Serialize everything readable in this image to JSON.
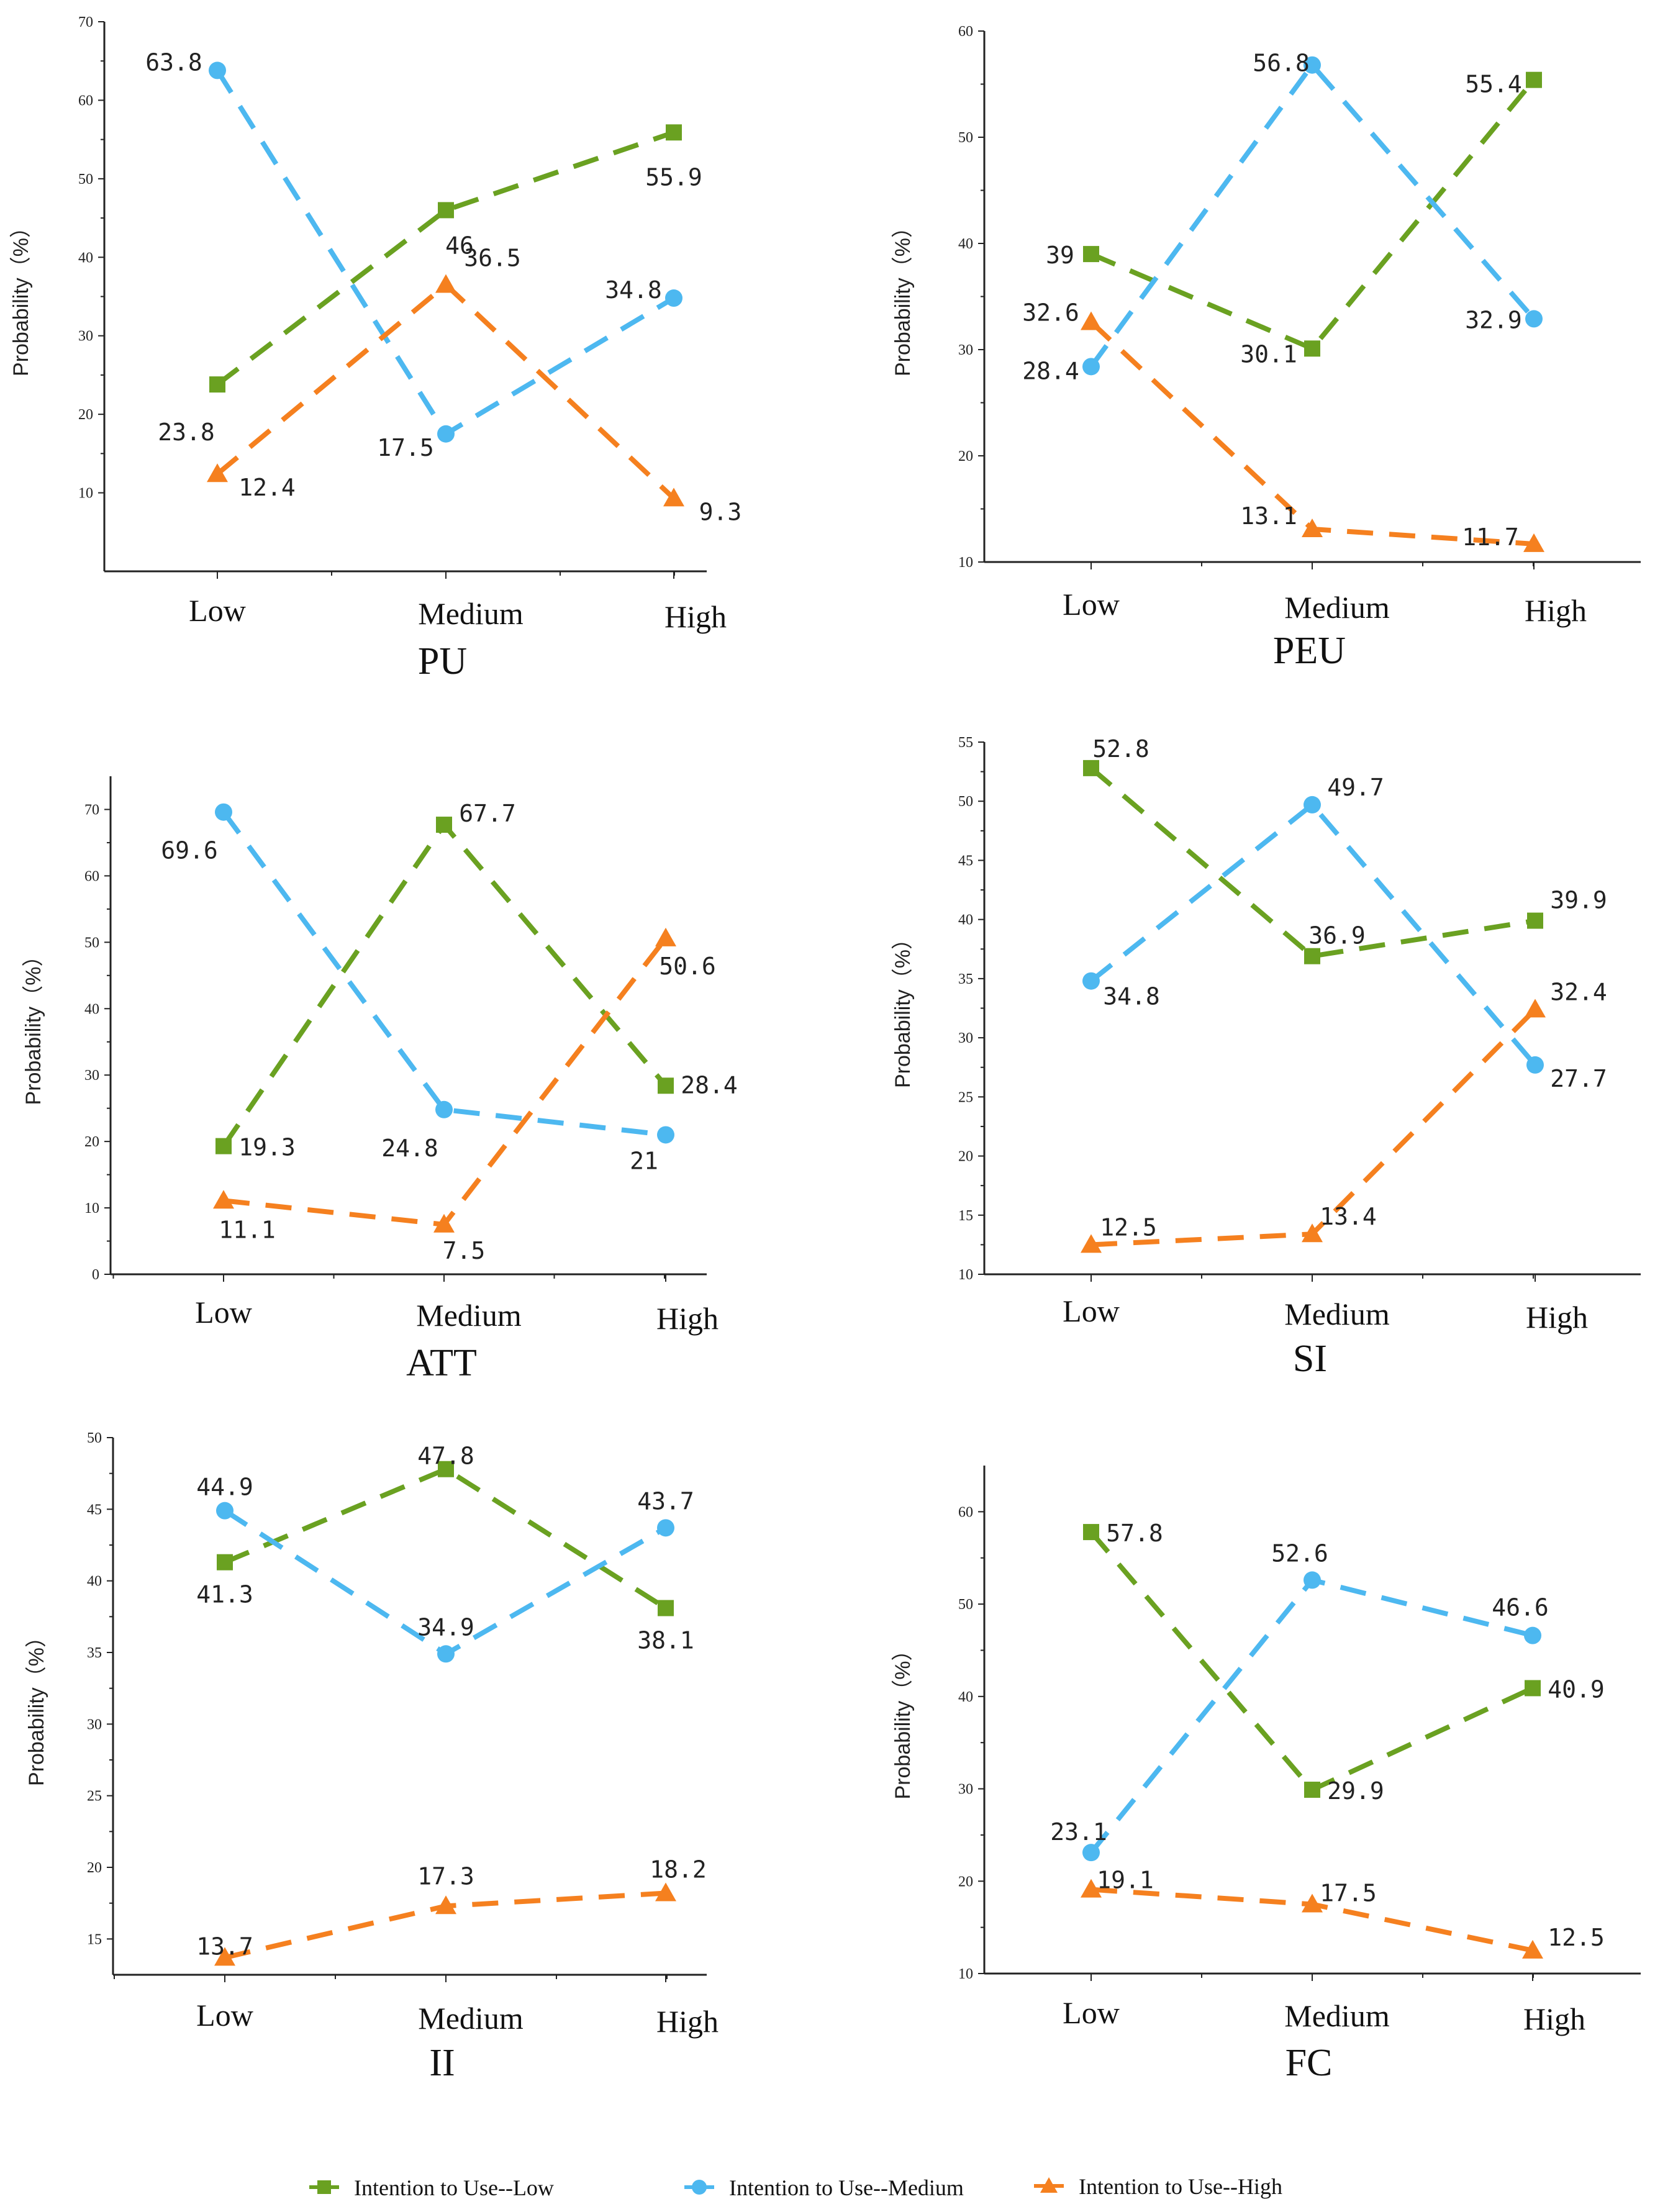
{
  "legend": {
    "entries": [
      {
        "series": "low",
        "label": "Intention to Use--Low"
      },
      {
        "series": "medium",
        "label": "Intention to Use--Medium"
      },
      {
        "series": "high",
        "label": "Intention to Use--High"
      }
    ]
  },
  "colors": {
    "low": "#6aa121",
    "medium": "#4db8f0",
    "high": "#f5801f"
  },
  "chart_data": [
    {
      "type": "line",
      "title": "PU",
      "ylabel": "Probability（%）",
      "categories": [
        "Low",
        "Medium",
        "High"
      ],
      "ylim": [
        0,
        70
      ],
      "yticks": [
        10,
        20,
        30,
        40,
        50,
        60,
        70
      ],
      "series": [
        {
          "name": "Intention to Use--Low",
          "key": "low",
          "values": [
            23.8,
            46,
            55.9
          ],
          "labels": [
            "23.8",
            "46",
            "55.9"
          ]
        },
        {
          "name": "Intention to Use--Medium",
          "key": "medium",
          "values": [
            63.8,
            17.5,
            34.8
          ],
          "labels": [
            "63.8",
            "17.5",
            "34.8"
          ]
        },
        {
          "name": "Intention to Use--High",
          "key": "high",
          "values": [
            12.4,
            36.5,
            9.3
          ],
          "labels": [
            "12.4",
            "36.5",
            "9.3"
          ]
        }
      ]
    },
    {
      "type": "line",
      "title": "PEU",
      "ylabel": "Probability（%）",
      "categories": [
        "Low",
        "Medium",
        "High"
      ],
      "ylim": [
        10,
        60
      ],
      "yticks": [
        10,
        20,
        30,
        40,
        50,
        60
      ],
      "series": [
        {
          "name": "Intention to Use--Low",
          "key": "low",
          "values": [
            39,
            30.1,
            55.4
          ],
          "labels": [
            "39",
            "30.1",
            "55.4"
          ]
        },
        {
          "name": "Intention to Use--Medium",
          "key": "medium",
          "values": [
            28.4,
            56.8,
            32.9
          ],
          "labels": [
            "28.4",
            "56.8",
            "32.9"
          ]
        },
        {
          "name": "Intention to Use--High",
          "key": "high",
          "values": [
            32.6,
            13.1,
            11.7
          ],
          "labels": [
            "32.6",
            "13.1",
            "11.7"
          ]
        }
      ]
    },
    {
      "type": "line",
      "title": "ATT",
      "ylabel": "Probability（%）",
      "categories": [
        "Low",
        "Medium",
        "High"
      ],
      "ylim": [
        0,
        75
      ],
      "yticks": [
        0,
        10,
        20,
        30,
        40,
        50,
        60,
        70
      ],
      "series": [
        {
          "name": "Intention to Use--Low",
          "key": "low",
          "values": [
            19.3,
            67.7,
            28.4
          ],
          "labels": [
            "19.3",
            "67.7",
            "28.4"
          ]
        },
        {
          "name": "Intention to Use--Medium",
          "key": "medium",
          "values": [
            69.6,
            24.8,
            21
          ],
          "labels": [
            "69.6",
            "24.8",
            "21"
          ]
        },
        {
          "name": "Intention to Use--High",
          "key": "high",
          "values": [
            11.1,
            7.5,
            50.6
          ],
          "labels": [
            "11.1",
            "7.5",
            "50.6"
          ]
        }
      ]
    },
    {
      "type": "line",
      "title": "SI",
      "ylabel": "Probability（%）",
      "categories": [
        "Low",
        "Medium",
        "High"
      ],
      "ylim": [
        10,
        55
      ],
      "yticks": [
        10,
        15,
        20,
        25,
        30,
        35,
        40,
        45,
        50,
        55
      ],
      "series": [
        {
          "name": "Intention to Use--Low",
          "key": "low",
          "values": [
            52.8,
            36.9,
            39.9
          ],
          "labels": [
            "52.8",
            "36.9",
            "39.9"
          ]
        },
        {
          "name": "Intention to Use--Medium",
          "key": "medium",
          "values": [
            34.8,
            49.7,
            27.7
          ],
          "labels": [
            "34.8",
            "49.7",
            "27.7"
          ]
        },
        {
          "name": "Intention to Use--High",
          "key": "high",
          "values": [
            12.5,
            13.4,
            32.4
          ],
          "labels": [
            "12.5",
            "13.4",
            "32.4"
          ]
        }
      ]
    },
    {
      "type": "line",
      "title": "II",
      "ylabel": "Probability（%）",
      "categories": [
        "Low",
        "Medium",
        "High"
      ],
      "ylim": [
        12.5,
        50
      ],
      "yticks": [
        15,
        20,
        25,
        30,
        35,
        40,
        45,
        50
      ],
      "series": [
        {
          "name": "Intention to Use--Low",
          "key": "low",
          "values": [
            41.3,
            47.8,
            38.1
          ],
          "labels": [
            "41.3",
            "47.8",
            "38.1"
          ]
        },
        {
          "name": "Intention to Use--Medium",
          "key": "medium",
          "values": [
            44.9,
            34.9,
            43.7
          ],
          "labels": [
            "44.9",
            "34.9",
            "43.7"
          ]
        },
        {
          "name": "Intention to Use--High",
          "key": "high",
          "values": [
            13.7,
            17.3,
            18.2
          ],
          "labels": [
            "13.7",
            "17.3",
            "18.2"
          ]
        }
      ]
    },
    {
      "type": "line",
      "title": "FC",
      "ylabel": "Probability（%）",
      "categories": [
        "Low",
        "Medium",
        "High"
      ],
      "ylim": [
        10,
        65
      ],
      "yticks": [
        10,
        20,
        30,
        40,
        50,
        60
      ],
      "series": [
        {
          "name": "Intention to Use--Low",
          "key": "low",
          "values": [
            57.8,
            29.9,
            40.9
          ],
          "labels": [
            "57.8",
            "29.9",
            "40.9"
          ]
        },
        {
          "name": "Intention to Use--Medium",
          "key": "medium",
          "values": [
            23.1,
            52.6,
            46.6
          ],
          "labels": [
            "23.1",
            "52.6",
            "46.6"
          ]
        },
        {
          "name": "Intention to Use--High",
          "key": "high",
          "values": [
            19.1,
            17.5,
            12.5
          ],
          "labels": [
            "19.1",
            "17.5",
            "12.5"
          ]
        }
      ]
    }
  ]
}
